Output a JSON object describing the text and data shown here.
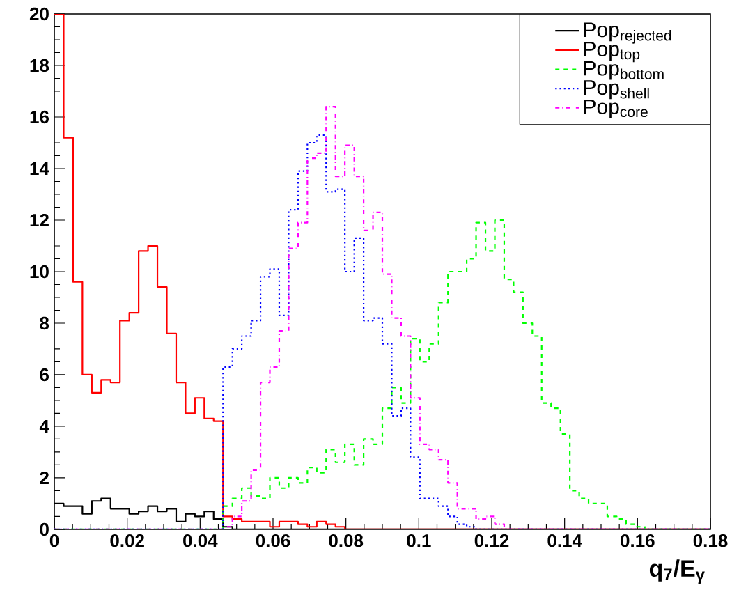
{
  "chart_data": {
    "type": "histogram",
    "xlabel": "q$_{7}$/E$_{γ}$",
    "bins": [
      0,
      0.00257,
      0.00514,
      0.00771,
      0.01029,
      0.01286,
      0.01543,
      0.018,
      0.02057,
      0.02314,
      0.02571,
      0.02829,
      0.03086,
      0.03343,
      0.036,
      0.03857,
      0.04114,
      0.04371,
      0.04629,
      0.04886,
      0.05143,
      0.054,
      0.05657,
      0.05914,
      0.06171,
      0.06429,
      0.06686,
      0.06943,
      0.072,
      0.07457,
      0.07714,
      0.07971,
      0.08229,
      0.08486,
      0.08743,
      0.09,
      0.09257,
      0.09514,
      0.09771,
      0.10029,
      0.10286,
      0.10543,
      0.108,
      0.11057,
      0.11314,
      0.11571,
      0.11829,
      0.12086,
      0.12343,
      0.126,
      0.12857,
      0.13114,
      0.13371,
      0.13629,
      0.13886,
      0.14143,
      0.144,
      0.14657,
      0.14914,
      0.15171,
      0.15429,
      0.15686,
      0.15943,
      0.162,
      0.16457,
      0.16714,
      0.16971,
      0.17229,
      0.17486,
      0.17743,
      0.18
    ],
    "series": [
      {
        "name": "Pop$_{rejected}$",
        "color": "#000000",
        "line_style": "solid",
        "values": [
          1.0,
          0.9,
          0.9,
          0.6,
          1.1,
          1.2,
          0.8,
          0.8,
          0.6,
          0.7,
          0.9,
          0.7,
          0.8,
          0.3,
          0.6,
          0.5,
          0.7,
          0.4,
          0.1,
          0,
          0,
          0,
          0,
          0,
          0,
          0,
          0,
          0,
          0,
          0,
          0,
          0,
          0,
          0,
          0,
          0,
          0,
          0,
          0,
          0,
          0,
          0,
          0,
          0,
          0,
          0,
          0,
          0,
          0,
          0,
          0,
          0,
          0,
          0,
          0,
          0,
          0,
          0,
          0,
          0,
          0,
          0,
          0,
          0,
          0,
          0,
          0,
          0,
          0,
          0
        ]
      },
      {
        "name": "Pop$_{top}$",
        "color": "#ff0000",
        "line_style": "solid",
        "values": [
          20,
          15.2,
          9.6,
          6.0,
          5.3,
          5.8,
          5.7,
          8.1,
          8.4,
          10.8,
          11.0,
          9.4,
          7.6,
          5.7,
          4.5,
          5.1,
          4.3,
          4.2,
          0.5,
          0.4,
          0.3,
          0.3,
          0.3,
          0.1,
          0.3,
          0.3,
          0.2,
          0.1,
          0.3,
          0.2,
          0.1,
          0,
          0,
          0,
          0,
          0,
          0,
          0,
          0,
          0,
          0,
          0,
          0,
          0,
          0,
          0,
          0,
          0,
          0,
          0,
          0,
          0,
          0,
          0,
          0,
          0,
          0,
          0,
          0,
          0,
          0,
          0,
          0,
          0,
          0,
          0,
          0,
          0,
          0,
          0
        ]
      },
      {
        "name": "Pop$_{bottom}$",
        "color": "#00ff00",
        "line_style": "dashed",
        "values": [
          0,
          0,
          0,
          0,
          0,
          0,
          0,
          0,
          0,
          0,
          0,
          0,
          0,
          0,
          0,
          0,
          0,
          0,
          0.9,
          1.2,
          1.6,
          1.3,
          1.2,
          2.0,
          1.6,
          2.0,
          1.8,
          2.4,
          2.2,
          3.1,
          2.6,
          3.3,
          2.5,
          3.5,
          3.3,
          4.7,
          5.5,
          4.9,
          7.4,
          6.5,
          7.2,
          8.8,
          10.0,
          10.0,
          10.5,
          11.9,
          10.8,
          12.0,
          9.7,
          9.2,
          8.0,
          7.5,
          4.9,
          4.7,
          3.7,
          1.5,
          1.2,
          1.0,
          1.0,
          0.5,
          0.4,
          0.2,
          0.1,
          0,
          0,
          0,
          0,
          0,
          0,
          0
        ]
      },
      {
        "name": "Pop$_{shell}$",
        "color": "#0000ff",
        "line_style": "dotted",
        "values": [
          0,
          0,
          0,
          0,
          0,
          0,
          0,
          0,
          0,
          0,
          0,
          0,
          0,
          0,
          0,
          0,
          0,
          0,
          6.3,
          7.0,
          7.5,
          8.1,
          9.8,
          10.1,
          8.3,
          12.4,
          13.9,
          15.0,
          15.3,
          13.1,
          13.2,
          10.0,
          11.3,
          8.1,
          8.2,
          7.2,
          4.4,
          4.7,
          2.8,
          1.2,
          1.2,
          0.9,
          0.5,
          0.2,
          0.1,
          0,
          0,
          0,
          0,
          0,
          0,
          0,
          0,
          0,
          0,
          0,
          0,
          0,
          0,
          0,
          0,
          0,
          0,
          0,
          0,
          0,
          0,
          0,
          0,
          0
        ]
      },
      {
        "name": "Pop$_{core}$",
        "color": "#ff00ff",
        "line_style": "dashdot",
        "values": [
          0,
          0,
          0,
          0,
          0,
          0,
          0,
          0,
          0,
          0,
          0,
          0,
          0,
          0,
          0,
          0,
          0,
          0,
          0.1,
          0.5,
          1.1,
          2.3,
          5.7,
          6.3,
          7.7,
          10.9,
          11.9,
          14.4,
          14.6,
          16.4,
          13.7,
          14.9,
          13.7,
          11.6,
          12.3,
          9.9,
          8.2,
          7.5,
          5.1,
          3.3,
          3.1,
          2.7,
          1.8,
          0.8,
          0.8,
          0.4,
          0.5,
          0.2,
          0,
          0,
          0,
          0,
          0,
          0,
          0,
          0,
          0,
          0,
          0,
          0,
          0,
          0,
          0,
          0,
          0,
          0,
          0,
          0,
          0,
          0
        ]
      }
    ],
    "xlim": [
      0,
      0.18
    ],
    "ylim": [
      0,
      20
    ],
    "xticks": [
      0,
      0.02,
      0.04,
      0.06,
      0.08,
      0.1,
      0.12,
      0.14,
      0.16,
      0.18
    ],
    "yticks": [
      0,
      2,
      4,
      6,
      8,
      10,
      12,
      14,
      16,
      18,
      20
    ],
    "legend": "top right"
  }
}
